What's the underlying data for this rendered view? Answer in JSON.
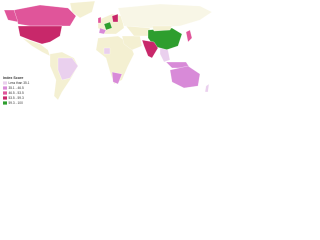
{
  "legend": {
    "title": "Index Score",
    "items": [
      {
        "label": "Less than 35.1",
        "color": "#ead0ee"
      },
      {
        "label": "35.1 - 46.5",
        "color": "#d88ad8"
      },
      {
        "label": "46.5 - 53.5",
        "color": "#e0559a"
      },
      {
        "label": "53.5 - 59.3",
        "color": "#c8286a"
      },
      {
        "label": "59.3 - 100",
        "color": "#2e9e2e"
      }
    ]
  }
}
